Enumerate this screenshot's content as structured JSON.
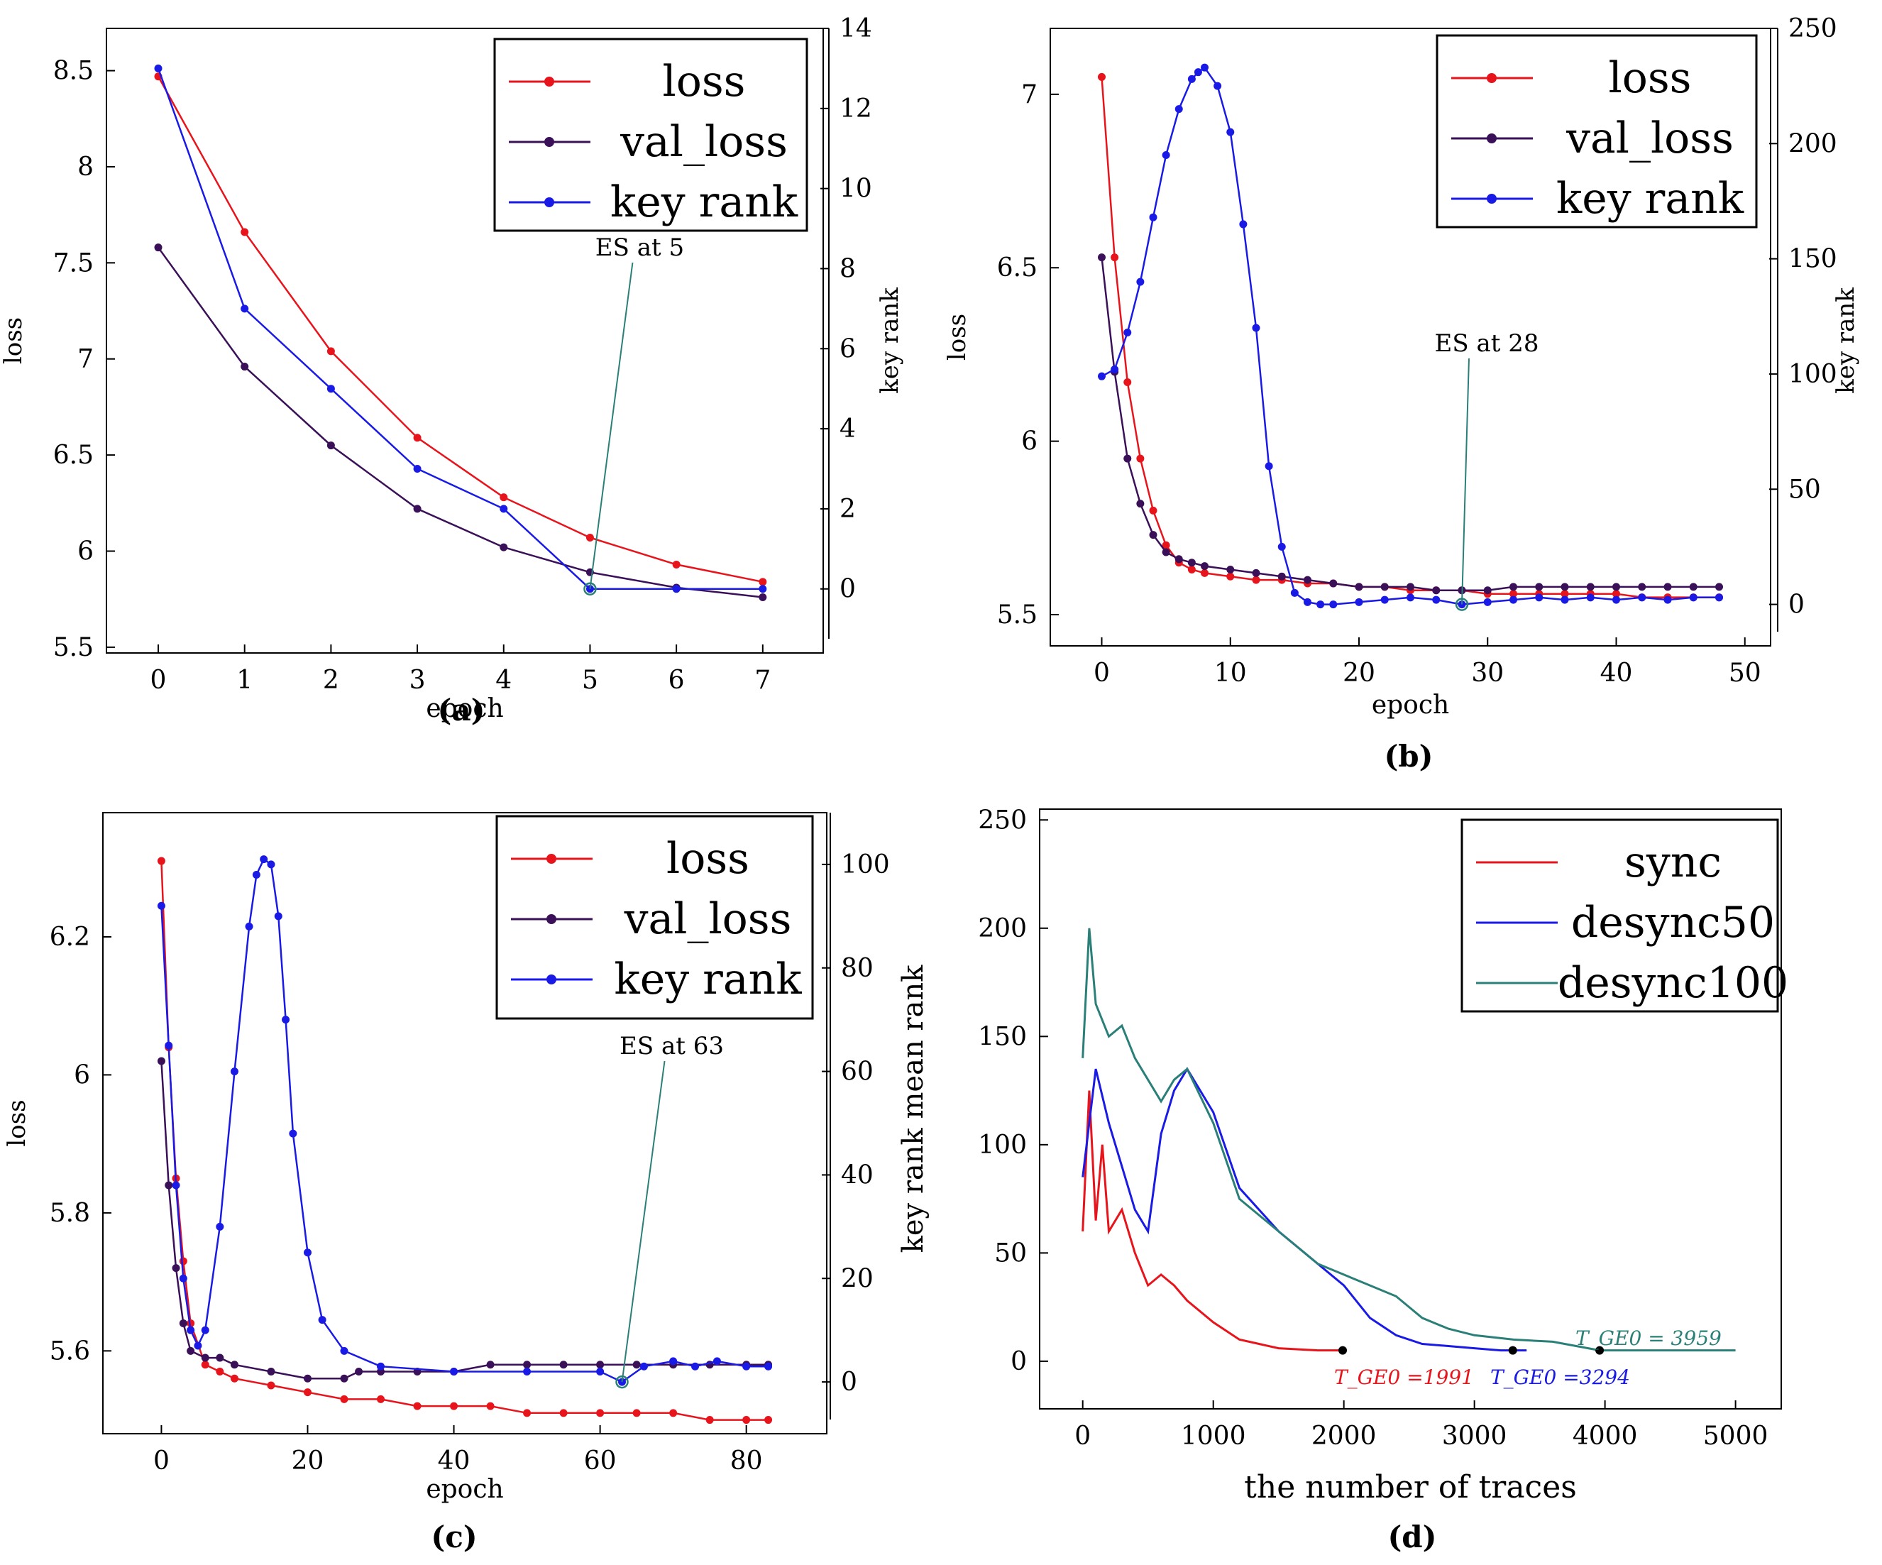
{
  "colors": {
    "red": "#e8141b",
    "purple": "#3a1058",
    "blue": "#1a1ae6",
    "teal": "#2a8078"
  },
  "chart_data": [
    {
      "type": "line",
      "panel": "(a)",
      "xlabel": "epoch",
      "ylabel": "loss",
      "y2label": "key rank",
      "x_ticks": [
        0,
        1,
        2,
        3,
        4,
        5,
        6,
        7
      ],
      "y_ticks": [
        5.5,
        6,
        6.5,
        7,
        7.5,
        8,
        8.5
      ],
      "y2_ticks": [
        0,
        2,
        4,
        6,
        8,
        10,
        12,
        14
      ],
      "xlim": [
        -0.6,
        7.7
      ],
      "ylim": [
        5.47,
        8.72
      ],
      "y2lim": [
        -1.6,
        14
      ],
      "annotation": {
        "label": "ES at 5",
        "x": 5,
        "y2": 0
      },
      "legend": [
        "loss",
        "val_loss",
        "key rank"
      ],
      "series": [
        {
          "name": "loss",
          "color": "red",
          "axis": "y",
          "x": [
            0,
            1,
            2,
            3,
            4,
            5,
            6,
            7
          ],
          "values": [
            8.47,
            7.66,
            7.04,
            6.59,
            6.28,
            6.07,
            5.93,
            5.84
          ]
        },
        {
          "name": "val_loss",
          "color": "purple",
          "axis": "y",
          "x": [
            0,
            1,
            2,
            3,
            4,
            5,
            6,
            7
          ],
          "values": [
            7.58,
            6.96,
            6.55,
            6.22,
            6.02,
            5.89,
            5.81,
            5.76
          ]
        },
        {
          "name": "key rank",
          "color": "blue",
          "axis": "y2",
          "x": [
            0,
            1,
            2,
            3,
            4,
            5,
            6,
            7
          ],
          "values": [
            13,
            7,
            5,
            3,
            2,
            0,
            0,
            0
          ]
        }
      ]
    },
    {
      "type": "line",
      "panel": "(b)",
      "xlabel": "epoch",
      "ylabel": "loss",
      "y2label": "key rank",
      "x_ticks": [
        0,
        10,
        20,
        30,
        40,
        50
      ],
      "y_ticks": [
        5.5,
        6,
        6.5,
        7
      ],
      "y2_ticks": [
        0,
        50,
        100,
        150,
        200,
        250
      ],
      "xlim": [
        -4,
        52
      ],
      "ylim": [
        5.41,
        7.19
      ],
      "y2lim": [
        -18,
        250
      ],
      "annotation": {
        "label": "ES at 28",
        "x": 28,
        "y2": 0
      },
      "legend": [
        "loss",
        "val_loss",
        "key rank"
      ],
      "series": [
        {
          "name": "loss",
          "color": "red",
          "axis": "y",
          "x": [
            0,
            1,
            2,
            3,
            4,
            5,
            6,
            7,
            8,
            10,
            12,
            14,
            16,
            18,
            20,
            22,
            24,
            26,
            28,
            30,
            32,
            34,
            36,
            38,
            40,
            42,
            44,
            46,
            48
          ],
          "values": [
            7.05,
            6.53,
            6.17,
            5.95,
            5.8,
            5.7,
            5.65,
            5.63,
            5.62,
            5.61,
            5.6,
            5.6,
            5.59,
            5.59,
            5.58,
            5.58,
            5.57,
            5.57,
            5.57,
            5.56,
            5.56,
            5.56,
            5.56,
            5.56,
            5.56,
            5.55,
            5.55,
            5.55,
            5.55
          ]
        },
        {
          "name": "val_loss",
          "color": "purple",
          "axis": "y",
          "x": [
            0,
            1,
            2,
            3,
            4,
            5,
            6,
            7,
            8,
            10,
            12,
            14,
            16,
            18,
            20,
            22,
            24,
            26,
            28,
            30,
            32,
            34,
            36,
            38,
            40,
            42,
            44,
            46,
            48
          ],
          "values": [
            6.53,
            6.2,
            5.95,
            5.82,
            5.73,
            5.68,
            5.66,
            5.65,
            5.64,
            5.63,
            5.62,
            5.61,
            5.6,
            5.59,
            5.58,
            5.58,
            5.58,
            5.57,
            5.57,
            5.57,
            5.58,
            5.58,
            5.58,
            5.58,
            5.58,
            5.58,
            5.58,
            5.58,
            5.58
          ]
        },
        {
          "name": "key rank",
          "color": "blue",
          "axis": "y2",
          "x": [
            0,
            1,
            2,
            3,
            4,
            5,
            6,
            7,
            7.5,
            8,
            9,
            10,
            11,
            12,
            13,
            14,
            15,
            16,
            17,
            18,
            20,
            22,
            24,
            26,
            28,
            30,
            32,
            34,
            36,
            38,
            40,
            42,
            44,
            46,
            48
          ],
          "values": [
            99,
            102,
            118,
            140,
            168,
            195,
            215,
            228,
            231,
            233,
            225,
            205,
            165,
            120,
            60,
            25,
            5,
            1,
            0,
            0,
            1,
            2,
            3,
            2,
            0,
            1,
            2,
            3,
            2,
            3,
            2,
            3,
            2,
            3,
            3
          ]
        }
      ]
    },
    {
      "type": "line",
      "panel": "(c)",
      "xlabel": "epoch",
      "ylabel": "loss",
      "x_ticks": [
        0,
        20,
        40,
        60,
        80
      ],
      "y_ticks": [
        5.6,
        5.8,
        6,
        6.2
      ],
      "y2_ticks": [
        0,
        20,
        40,
        60,
        80,
        100
      ],
      "xlim": [
        -8,
        91
      ],
      "ylim": [
        5.48,
        6.38
      ],
      "y2lim": [
        -10,
        110
      ],
      "annotation": {
        "label": "ES at 63",
        "x": 63,
        "y2": 0
      },
      "legend": [
        "loss",
        "val_loss",
        "key rank"
      ],
      "series": [
        {
          "name": "loss",
          "color": "red",
          "axis": "y",
          "x": [
            0,
            1,
            2,
            3,
            4,
            6,
            8,
            10,
            15,
            20,
            25,
            30,
            35,
            40,
            45,
            50,
            55,
            60,
            65,
            70,
            75,
            80,
            83
          ],
          "values": [
            6.31,
            6.04,
            5.85,
            5.73,
            5.64,
            5.58,
            5.57,
            5.56,
            5.55,
            5.54,
            5.53,
            5.53,
            5.52,
            5.52,
            5.52,
            5.51,
            5.51,
            5.51,
            5.51,
            5.51,
            5.5,
            5.5,
            5.5
          ]
        },
        {
          "name": "val_loss",
          "color": "purple",
          "axis": "y",
          "x": [
            0,
            1,
            2,
            3,
            4,
            6,
            8,
            10,
            15,
            20,
            25,
            27,
            30,
            35,
            40,
            45,
            50,
            55,
            60,
            65,
            70,
            75,
            80,
            83
          ],
          "values": [
            6.02,
            5.84,
            5.72,
            5.64,
            5.6,
            5.59,
            5.59,
            5.58,
            5.57,
            5.56,
            5.56,
            5.57,
            5.57,
            5.57,
            5.57,
            5.58,
            5.58,
            5.58,
            5.58,
            5.58,
            5.58,
            5.58,
            5.58,
            5.58
          ]
        },
        {
          "name": "key rank",
          "color": "blue",
          "axis": "y2",
          "x": [
            0,
            1,
            2,
            3,
            4,
            5,
            6,
            8,
            10,
            12,
            13,
            14,
            15,
            16,
            17,
            18,
            20,
            22,
            25,
            30,
            40,
            50,
            60,
            63,
            66,
            70,
            73,
            76,
            80,
            83
          ],
          "values": [
            92,
            65,
            38,
            20,
            10,
            7,
            10,
            30,
            60,
            88,
            98,
            101,
            100,
            90,
            70,
            48,
            25,
            12,
            6,
            3,
            2,
            2,
            2,
            0,
            3,
            4,
            3,
            4,
            3,
            3
          ]
        }
      ]
    },
    {
      "type": "line",
      "panel": "(d)",
      "xlabel": "the number of traces",
      "ylabel": "key rank mean rank",
      "x_ticks": [
        0,
        1000,
        2000,
        3000,
        4000,
        5000
      ],
      "y_ticks": [
        0,
        50,
        100,
        150,
        200,
        250
      ],
      "xlim": [
        -330,
        5350
      ],
      "ylim": [
        -22,
        255
      ],
      "legend": [
        "sync",
        "desync50",
        "desync100"
      ],
      "annotations": [
        {
          "series": "sync",
          "x": 1991,
          "label": "T_GE0 =1991"
        },
        {
          "series": "desync50",
          "x": 3294,
          "label": "T_GE0 =3294"
        },
        {
          "series": "desync100",
          "x": 3959,
          "label": "T_GE0 = 3959"
        }
      ],
      "series": [
        {
          "name": "sync",
          "color": "red",
          "x": [
            0,
            50,
            100,
            150,
            200,
            300,
            400,
            500,
            600,
            700,
            800,
            1000,
            1200,
            1500,
            1800,
            1991
          ],
          "values": [
            60,
            125,
            65,
            100,
            60,
            70,
            50,
            35,
            40,
            35,
            28,
            18,
            10,
            6,
            5,
            5
          ]
        },
        {
          "name": "desync50",
          "color": "blue",
          "x": [
            0,
            100,
            200,
            300,
            400,
            500,
            600,
            700,
            800,
            1000,
            1200,
            1500,
            1800,
            2000,
            2200,
            2400,
            2600,
            2800,
            3000,
            3200,
            3294,
            3400
          ],
          "values": [
            85,
            135,
            110,
            90,
            70,
            60,
            105,
            125,
            135,
            115,
            80,
            60,
            45,
            35,
            20,
            12,
            8,
            7,
            6,
            5,
            5,
            5
          ]
        },
        {
          "name": "desync100",
          "color": "teal",
          "x": [
            0,
            50,
            100,
            200,
            300,
            400,
            500,
            600,
            700,
            800,
            1000,
            1200,
            1400,
            1600,
            1800,
            2000,
            2200,
            2400,
            2600,
            2800,
            3000,
            3300,
            3600,
            3959,
            4200,
            4600,
            5000
          ],
          "values": [
            140,
            200,
            165,
            150,
            155,
            140,
            130,
            120,
            130,
            135,
            110,
            75,
            65,
            55,
            45,
            40,
            35,
            30,
            20,
            15,
            12,
            10,
            9,
            5,
            5,
            5,
            5
          ]
        }
      ]
    }
  ]
}
